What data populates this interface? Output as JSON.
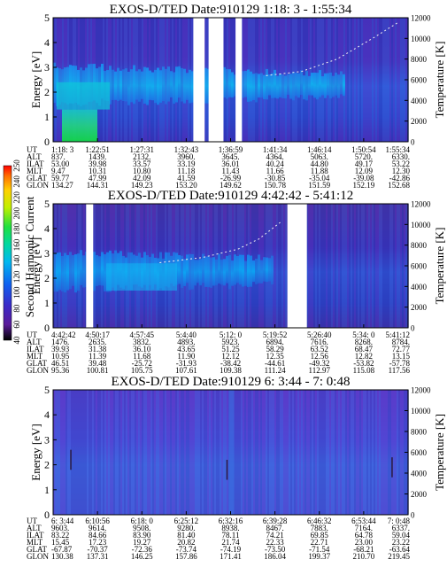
{
  "chart_data": [
    {
      "type": "heatmap",
      "title": "EXOS-D/TED   Date:910129  1:18: 3 - 1:55:34",
      "ylabel": "Energy [eV]",
      "y2label": "Temperature [K]",
      "ylim": [
        0,
        5
      ],
      "y2lim": [
        0,
        12000
      ],
      "yticks": [
        "0",
        "1",
        "2",
        "3",
        "4",
        "5"
      ],
      "y2ticks": [
        "0",
        "2000",
        "4000",
        "6000",
        "8000",
        "10000",
        "12000"
      ],
      "data_gaps_fraction": [
        [
          0.395,
          0.427
        ],
        [
          0.438,
          0.48
        ],
        [
          0.514,
          0.532
        ]
      ],
      "temperature_trace": [
        [
          0.6,
          6400
        ],
        [
          0.7,
          6800
        ],
        [
          0.8,
          8000
        ],
        [
          0.9,
          10000
        ],
        [
          0.97,
          11500
        ]
      ],
      "ephemeris": {
        "labels": [
          "UT",
          "ALT",
          "ILAT",
          "MLT",
          "GLAT",
          "GLON"
        ],
        "columns": [
          [
            "1:18: 3",
            "837.",
            "53.00",
            "9.47",
            "59.77",
            "134.27"
          ],
          [
            "1:22:51",
            "1439.",
            "39.98",
            "10.31",
            "47.99",
            "144.31"
          ],
          [
            "1:27:31",
            "2132.",
            "33.57",
            "10.80",
            "42.09",
            "149.23"
          ],
          [
            "1:32:43",
            "3960.",
            "33.19",
            "11.18",
            "41.59",
            "153.20"
          ],
          [
            "1:36:59",
            "3645.",
            "36.01",
            "11.43",
            "-26.99",
            "149.62"
          ],
          [
            "1:41:34",
            "4364.",
            "40.24",
            "11.66",
            "-30.85",
            "150.78"
          ],
          [
            "1:46:14",
            "5063.",
            "44.80",
            "11.88",
            "-35.04",
            "151.59"
          ],
          [
            "1:50:54",
            "5720.",
            "49.17",
            "12.09",
            "-39.08",
            "152.19"
          ],
          [
            "1:55:34",
            "6330.",
            "53.22",
            "12.30",
            "-42.86",
            "152.68"
          ]
        ]
      }
    },
    {
      "type": "heatmap",
      "title": "EXOS-D/TED   Date:910129  4:42:42 - 5:41:12",
      "ylabel": "Energy [eV]",
      "y2label": "Temperature [K]",
      "ylim": [
        0,
        5
      ],
      "y2lim": [
        0,
        12000
      ],
      "yticks": [
        "0",
        "1",
        "2",
        "3",
        "4",
        "5"
      ],
      "y2ticks": [
        "0",
        "2000",
        "4000",
        "6000",
        "8000",
        "10000",
        "12000"
      ],
      "data_gaps_fraction": [
        [
          0.093,
          0.113
        ],
        [
          0.66,
          0.715
        ]
      ],
      "temperature_trace": [
        [
          0.3,
          6300
        ],
        [
          0.42,
          6800
        ],
        [
          0.52,
          7600
        ],
        [
          0.58,
          8600
        ],
        [
          0.64,
          10200
        ]
      ],
      "colorbar": {
        "label": "Second Harmonic Current",
        "ticks": [
          "40",
          "60",
          "80",
          "100",
          "120",
          "140",
          "160",
          "180",
          "200",
          "220",
          "240",
          "250"
        ]
      },
      "ephemeris": {
        "labels": [
          "UT",
          "ALT",
          "ILAT",
          "MLT",
          "GLAT",
          "GLON"
        ],
        "columns": [
          [
            "4:42:42",
            "1476.",
            "39.93",
            "10.95",
            "46.51",
            "95.36"
          ],
          [
            "4:50:17",
            "2635.",
            "31.38",
            "11.39",
            "39.48",
            "100.81"
          ],
          [
            "4:57:45",
            "3832.",
            "36.10",
            "11.68",
            "-25.72",
            "105.75"
          ],
          [
            "5:4:40",
            "4893.",
            "43.65",
            "11.90",
            "-31.93",
            "107.61"
          ],
          [
            "5:12: 0",
            "5923.",
            "51.25",
            "12.12",
            "-38.42",
            "109.38"
          ],
          [
            "5:19:52",
            "6894.",
            "58.29",
            "12.35",
            "-44.61",
            "111.24"
          ],
          [
            "5:26:40",
            "7616.",
            "63.52",
            "12.56",
            "-49.32",
            "112.97"
          ],
          [
            "5:34: 0",
            "8268.",
            "68.47",
            "12.82",
            "-53.82",
            "115.08"
          ],
          [
            "5:41:12",
            "8784.",
            "72.77",
            "13.15",
            "-57.78",
            "117.56"
          ]
        ]
      }
    },
    {
      "type": "heatmap",
      "title": "EXOS-D/TED   Date:910129  6: 3:44 - 7: 0:48",
      "ylabel": "Energy [eV]",
      "y2label": "Temperature [K]",
      "ylim": [
        0,
        5
      ],
      "y2lim": [
        0,
        12000
      ],
      "yticks": [
        "0",
        "1",
        "2",
        "3",
        "4",
        "5"
      ],
      "y2ticks": [
        "0",
        "2000",
        "4000",
        "6000",
        "8000",
        "10000",
        "12000"
      ],
      "data_gaps_fraction": [],
      "temperature_trace": [],
      "ephemeris": {
        "labels": [
          "UT",
          "ALT",
          "ILAT",
          "MLT",
          "GLAT",
          "GLON"
        ],
        "columns": [
          [
            "6: 3:44",
            "9603.",
            "83.22",
            "15.45",
            "-67.87",
            "130.38"
          ],
          [
            "6:10:56",
            "9614.",
            "84.66",
            "17.23",
            "-70.37",
            "137.31"
          ],
          [
            "6:18: 0",
            "9508.",
            "83.90",
            "19.27",
            "-72.36",
            "146.25"
          ],
          [
            "6:25:12",
            "9280.",
            "81.40",
            "20.82",
            "-73.74",
            "157.86"
          ],
          [
            "6:32:16",
            "8938.",
            "78.11",
            "21.74",
            "-74.19",
            "171.41"
          ],
          [
            "6:39:28",
            "8467.",
            "74.21",
            "22.33",
            "-73.50",
            "186.04"
          ],
          [
            "6:46:32",
            "7883.",
            "69.85",
            "22.71",
            "-71.54",
            "199.37"
          ],
          [
            "6:53:44",
            "7164.",
            "64.78",
            "23.00",
            "-68.21",
            "210.70"
          ],
          [
            "7: 0:48",
            "6337.",
            "59.04",
            "23.22",
            "-63.64",
            "219.45"
          ]
        ]
      }
    }
  ]
}
